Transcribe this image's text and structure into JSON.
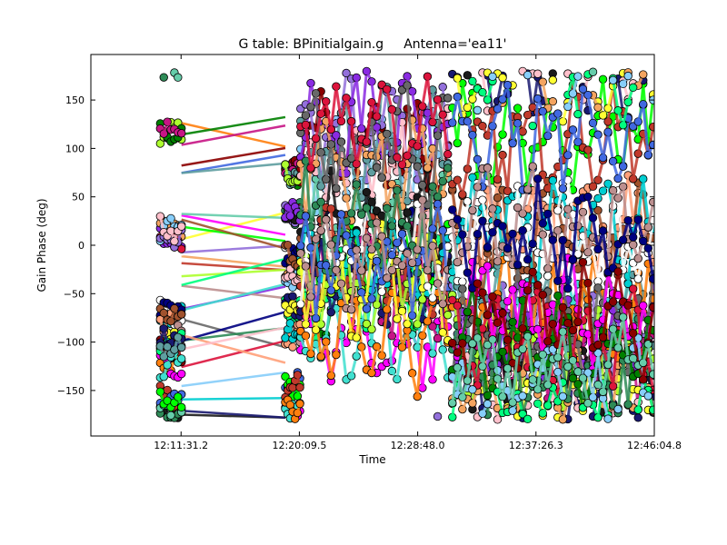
{
  "chart_data": {
    "type": "scatter",
    "title_parts": [
      "G table: BPinitialgain.g",
      "Antenna='ea11'"
    ],
    "xlabel": "Time",
    "ylabel": "Gain Phase (deg)",
    "x_ticks": [
      "12:11:31.2",
      "12:20:09.5",
      "12:28:48.0",
      "12:37:26.3",
      "12:46:04.8"
    ],
    "x_tick_seconds": [
      43891.2,
      44409.5,
      44928.0,
      45446.3,
      45964.8
    ],
    "xlim_seconds": [
      43496,
      45964.8
    ],
    "y_ticks": [
      -150,
      -100,
      -50,
      0,
      50,
      100,
      150
    ],
    "ylim": [
      -197,
      197
    ],
    "grid": false,
    "scans": [
      {
        "x_start": "12:10:00",
        "x_end": "12:11:33"
      },
      {
        "x_start": "12:19:08",
        "x_end": "12:20:12"
      },
      {
        "x_start": "12:20:15",
        "x_end": "12:31:00"
      },
      {
        "x_start": "12:31:20",
        "x_end": "12:46:00"
      }
    ],
    "series_colors": [
      "#1a1a1a",
      "#c0392b",
      "#8a2be2",
      "#00ced1",
      "#ff7f0e",
      "#adff2f",
      "#ffff33",
      "#f4a460",
      "#ffffff",
      "#696969",
      "#2e8b57",
      "#4169e1",
      "#dc143c",
      "#bc8f8f",
      "#ff00ff",
      "#008000",
      "#00ff7f",
      "#87cefa",
      "#000080",
      "#8b0000",
      "#66cdaa",
      "#00ff00",
      "#9370db",
      "#ffa07a",
      "#40e0d0",
      "#c71585",
      "#191970",
      "#ffc0cb",
      "#a0522d",
      "#5f9ea0"
    ]
  }
}
